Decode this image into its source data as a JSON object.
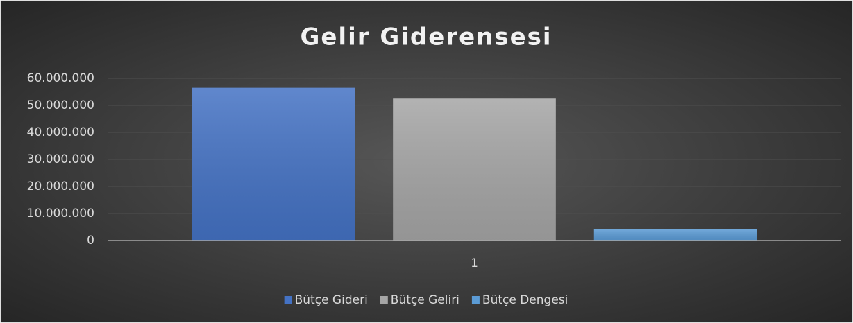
{
  "chart_data": {
    "type": "bar",
    "title": "Gelir Giderensesi",
    "categories": [
      "1"
    ],
    "series": [
      {
        "name": "Bütçe Gideri",
        "color": "#4472c4",
        "values": [
          56500000
        ]
      },
      {
        "name": "Bütçe Geliri",
        "color": "#a5a5a5",
        "values": [
          52500000
        ]
      },
      {
        "name": "Bütçe Dengesi",
        "color": "#5b9bd5",
        "values": [
          4300000
        ]
      }
    ],
    "ylim": [
      0,
      60000000
    ],
    "yticks": [
      0,
      {
        "value": 10000000,
        "label": "10.000.000"
      },
      {
        "value": 20000000,
        "label": "20.000.000"
      },
      {
        "value": 30000000,
        "label": "30.000.000"
      },
      {
        "value": 40000000,
        "label": "40.000.000"
      },
      {
        "value": 50000000,
        "label": "50.000.000"
      },
      {
        "value": 60000000,
        "label": "60.000.000"
      }
    ],
    "grid": true,
    "legend": "bottom"
  }
}
